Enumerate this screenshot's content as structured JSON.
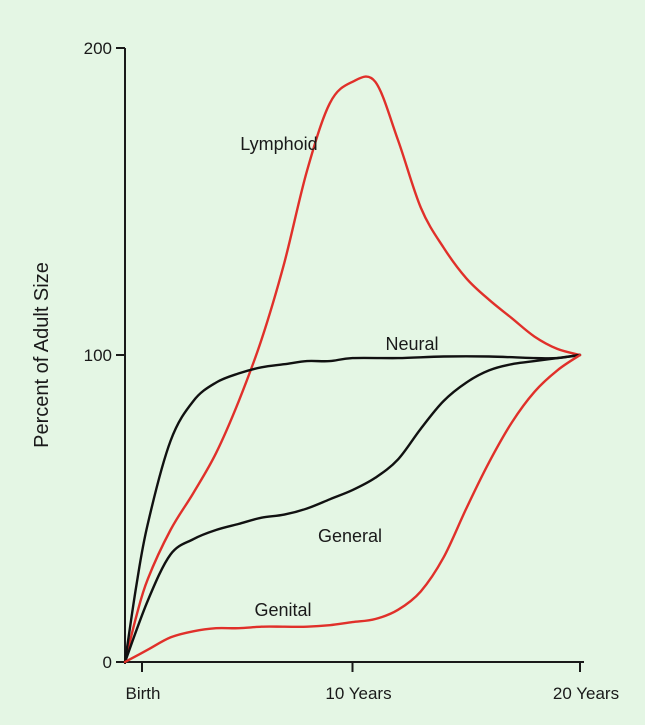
{
  "colors": {
    "background": "#e4f6e4",
    "axis": "#1a1a1a",
    "black_series": "#111111",
    "red_series": "#e0302a"
  },
  "chart_data": {
    "type": "line",
    "title": "",
    "xlabel": "",
    "ylabel": "Percent of Adult Size",
    "xlim": [
      0,
      20
    ],
    "ylim": [
      0,
      200
    ],
    "x_ticks": [
      {
        "value": 0,
        "label": "Birth"
      },
      {
        "value": 10,
        "label": "10 Years"
      },
      {
        "value": 20,
        "label": "20 Years"
      }
    ],
    "y_ticks": [
      {
        "value": 0,
        "label": "0"
      },
      {
        "value": 100,
        "label": "100"
      },
      {
        "value": 200,
        "label": "200"
      }
    ],
    "grid": false,
    "legend": "none",
    "series": [
      {
        "name": "Lymphoid",
        "color": "red",
        "points": [
          [
            0,
            0
          ],
          [
            0.5,
            15
          ],
          [
            1,
            27
          ],
          [
            2,
            43
          ],
          [
            3,
            55
          ],
          [
            4,
            68
          ],
          [
            5,
            85
          ],
          [
            6,
            105
          ],
          [
            7,
            130
          ],
          [
            8,
            160
          ],
          [
            9,
            182
          ],
          [
            10,
            189
          ],
          [
            11,
            189
          ],
          [
            12,
            170
          ],
          [
            13,
            148
          ],
          [
            14,
            135
          ],
          [
            15,
            125
          ],
          [
            16,
            118
          ],
          [
            17,
            112
          ],
          [
            18,
            106
          ],
          [
            19,
            102
          ],
          [
            20,
            100
          ]
        ]
      },
      {
        "name": "Neural",
        "color": "black",
        "points": [
          [
            0,
            0
          ],
          [
            0.5,
            25
          ],
          [
            1,
            45
          ],
          [
            2,
            72
          ],
          [
            3,
            85
          ],
          [
            4,
            91
          ],
          [
            5,
            94
          ],
          [
            6,
            96
          ],
          [
            7,
            97
          ],
          [
            8,
            98
          ],
          [
            9,
            98
          ],
          [
            10,
            99
          ],
          [
            12,
            99
          ],
          [
            14,
            99.5
          ],
          [
            16,
            99.5
          ],
          [
            18,
            99
          ],
          [
            19,
            99
          ],
          [
            20,
            100
          ]
        ]
      },
      {
        "name": "General",
        "color": "black",
        "points": [
          [
            0,
            0
          ],
          [
            1,
            20
          ],
          [
            2,
            35
          ],
          [
            3,
            40
          ],
          [
            4,
            43
          ],
          [
            5,
            45
          ],
          [
            6,
            47
          ],
          [
            7,
            48
          ],
          [
            8,
            50
          ],
          [
            9,
            53
          ],
          [
            10,
            56
          ],
          [
            11,
            60
          ],
          [
            12,
            66
          ],
          [
            13,
            76
          ],
          [
            14,
            85
          ],
          [
            15,
            91
          ],
          [
            16,
            95
          ],
          [
            17,
            97
          ],
          [
            18,
            98
          ],
          [
            20,
            100
          ]
        ]
      },
      {
        "name": "Genital",
        "color": "red",
        "points": [
          [
            0,
            0
          ],
          [
            1,
            4
          ],
          [
            2,
            8
          ],
          [
            3,
            10
          ],
          [
            4,
            11
          ],
          [
            5,
            11
          ],
          [
            6,
            11.5
          ],
          [
            7,
            11.5
          ],
          [
            8,
            11.5
          ],
          [
            9,
            12
          ],
          [
            10,
            13
          ],
          [
            11,
            14
          ],
          [
            12,
            17
          ],
          [
            13,
            23
          ],
          [
            14,
            34
          ],
          [
            15,
            50
          ],
          [
            16,
            65
          ],
          [
            17,
            78
          ],
          [
            18,
            88
          ],
          [
            19,
            95
          ],
          [
            20,
            100
          ]
        ]
      }
    ]
  }
}
